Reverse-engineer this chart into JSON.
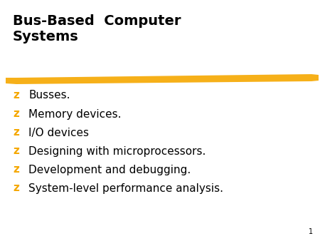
{
  "title_line1": "Bus-Based  Computer",
  "title_line2": "Systems",
  "title_color": "#000000",
  "title_fontsize": 14,
  "bullet_symbol": "z",
  "bullet_color": "#F5A800",
  "bullet_fontsize": 11,
  "text_color": "#000000",
  "text_fontsize": 11,
  "background_color": "#FFFFFF",
  "underline_color": "#F5A800",
  "items": [
    "Busses.",
    "Memory devices.",
    "I/O devices",
    "Designing with microprocessors.",
    "Development and debugging.",
    "System-level performance analysis."
  ],
  "page_number": "1",
  "page_number_color": "#000000",
  "page_number_fontsize": 7
}
